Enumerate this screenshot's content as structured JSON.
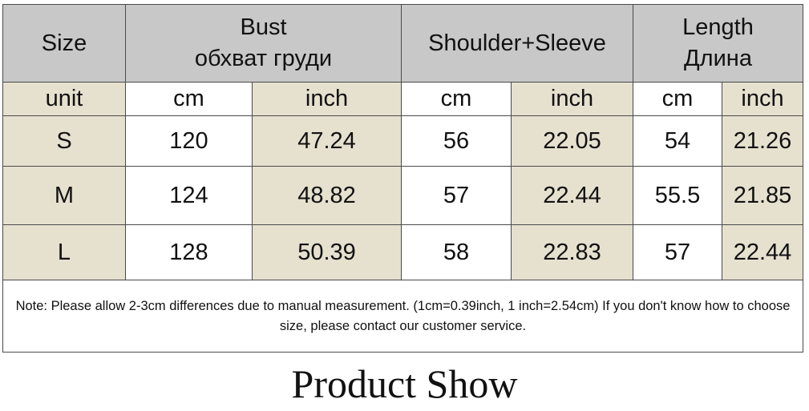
{
  "table": {
    "header": [
      [
        "Size"
      ],
      [
        "Bust",
        "обхват груди"
      ],
      [
        "Shoulder+Sleeve"
      ],
      [
        "Length",
        "Длина"
      ]
    ],
    "units": [
      "unit",
      "cm",
      "inch",
      "cm",
      "inch",
      "cm",
      "inch"
    ],
    "rows": [
      [
        "S",
        "120",
        "47.24",
        "56",
        "22.05",
        "54",
        "21.26"
      ],
      [
        "M",
        "124",
        "48.82",
        "57",
        "22.44",
        "55.5",
        "21.85"
      ],
      [
        "L",
        "128",
        "50.39",
        "58",
        "22.83",
        "57",
        "22.44"
      ]
    ],
    "note": "Note: Please allow 2-3cm differences due to manual measurement. (1cm=0.39inch, 1 inch=2.54cm)  If you don't know how to choose size, please contact our customer service."
  },
  "title": "Product Show"
}
